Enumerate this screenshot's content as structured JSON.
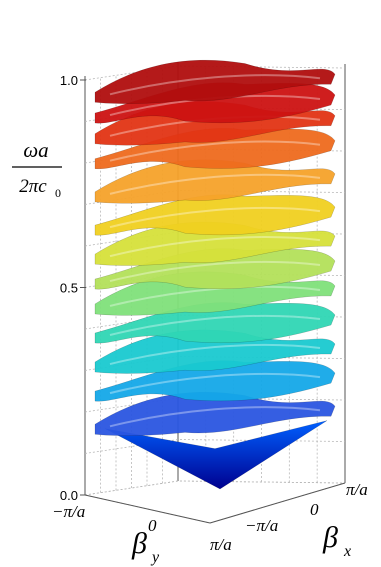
{
  "chart_data": {
    "type": "surface",
    "ylabel_numerator": "ωa",
    "ylabel_denominator_main": "2πc",
    "ylabel_denominator_sub": "0",
    "zlim": [
      0.0,
      1.0
    ],
    "z_ticks": [
      {
        "value": 0.0,
        "label": "0.0"
      },
      {
        "value": 0.5,
        "label": "0.5"
      },
      {
        "value": 1.0,
        "label": "1.0"
      }
    ],
    "bx_axis": {
      "symbol": "β",
      "subscript": "x",
      "ticks": [
        "π/a",
        "0",
        "−π/a"
      ]
    },
    "by_axis": {
      "symbol": "β",
      "subscript": "y",
      "ticks": [
        "−π/a",
        "0",
        "π/a"
      ]
    },
    "colormap": [
      "#00008f",
      "#0060ff",
      "#00d0ff",
      "#60ff9f",
      "#ffff00",
      "#ff9000",
      "#d00000",
      "#800000"
    ],
    "bands": [
      {
        "kind": "cone",
        "z_min": 0.0,
        "z_max": 0.16
      },
      {
        "kind": "sheet",
        "z": 0.18,
        "color": "#2a55e0"
      },
      {
        "kind": "sheet",
        "z": 0.26,
        "color": "#14a8e8"
      },
      {
        "kind": "sheet",
        "z": 0.33,
        "color": "#19c9d0"
      },
      {
        "kind": "sheet",
        "z": 0.4,
        "color": "#2fd6b4"
      },
      {
        "kind": "sheet",
        "z": 0.47,
        "color": "#7fe07a"
      },
      {
        "kind": "sheet",
        "z": 0.53,
        "color": "#b3e05a"
      },
      {
        "kind": "sheet",
        "z": 0.59,
        "color": "#d6e03a"
      },
      {
        "kind": "sheet",
        "z": 0.66,
        "color": "#f0d020"
      },
      {
        "kind": "sheet",
        "z": 0.74,
        "color": "#f5a22a"
      },
      {
        "kind": "sheet",
        "z": 0.82,
        "color": "#ee6a1e"
      },
      {
        "kind": "sheet",
        "z": 0.88,
        "color": "#e23414"
      },
      {
        "kind": "sheet",
        "z": 0.93,
        "color": "#cc1212"
      },
      {
        "kind": "sheet",
        "z": 0.98,
        "color": "#b00e0e"
      }
    ]
  }
}
